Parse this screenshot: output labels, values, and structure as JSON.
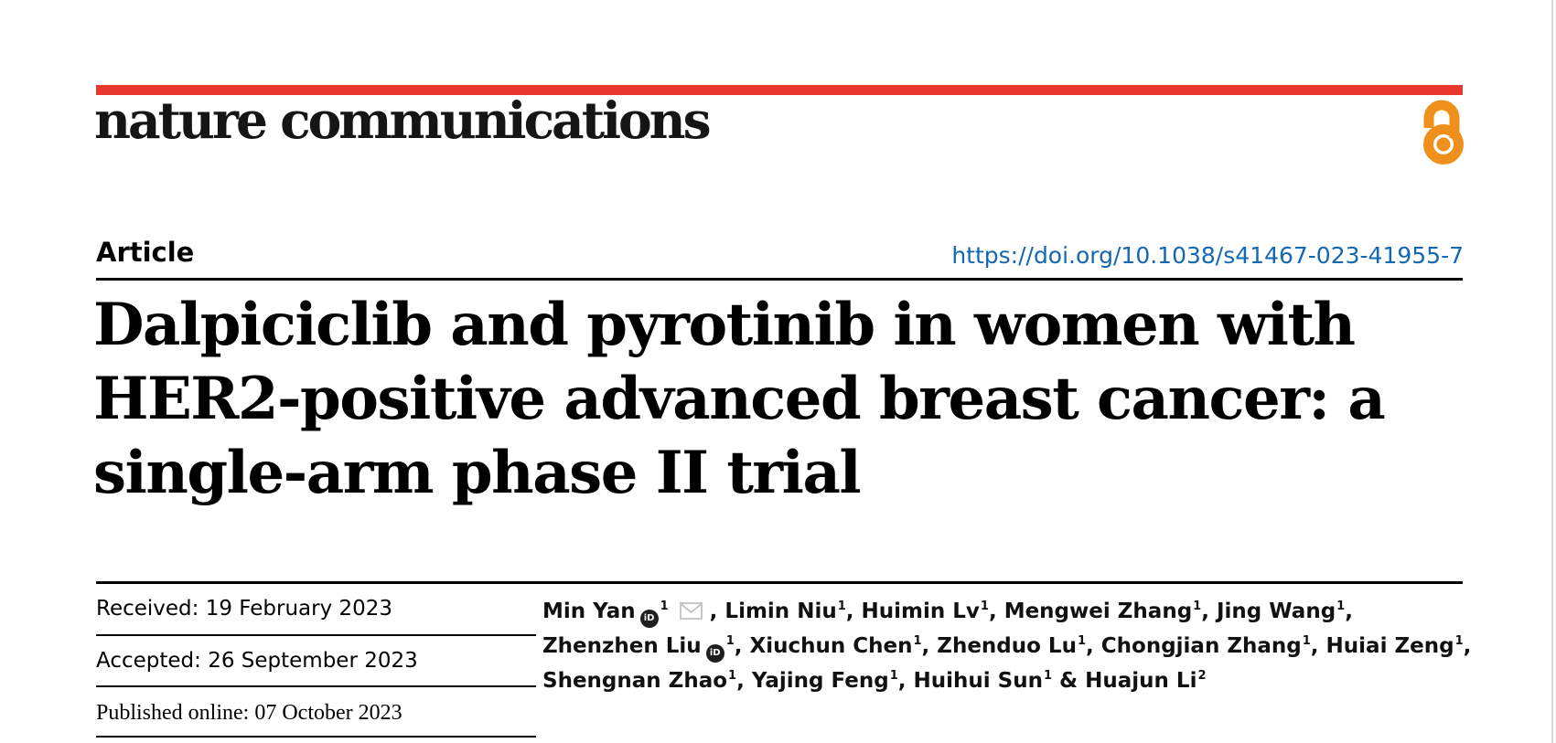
{
  "page": {
    "edge_color": "#d9d9d9"
  },
  "masthead": {
    "journal_name": "nature communications",
    "bar_color": "#e6382c",
    "open_access_color": "#ef8f1c"
  },
  "article": {
    "kicker": "Article",
    "doi": "https://doi.org/10.1038/s41467-023-41955-7",
    "doi_color": "#1268b3",
    "title_lines": [
      "Dalpiciclib and pyrotinib in women with",
      "HER2-positive advanced breast cancer: a",
      "single-arm phase II trial"
    ]
  },
  "history": {
    "received": "Received: 19 February 2023",
    "accepted": "Accepted: 26 September 2023",
    "published": "Published online: 07 October 2023"
  },
  "authors": {
    "orcid_icon_label": "iD",
    "lines": [
      [
        {
          "name": "Min Yan",
          "orcid": true,
          "sup": "1",
          "email": true,
          "sep": ", "
        },
        {
          "name": "Limin Niu",
          "sup": "1",
          "sep": ", "
        },
        {
          "name": "Huimin Lv",
          "sup": "1",
          "sep": ", "
        },
        {
          "name": "Mengwei Zhang",
          "sup": "1",
          "sep": ", "
        },
        {
          "name": "Jing Wang",
          "sup": "1",
          "sep": ","
        }
      ],
      [
        {
          "name": "Zhenzhen Liu",
          "orcid": true,
          "sup": "1",
          "sep": ", "
        },
        {
          "name": "Xiuchun Chen",
          "sup": "1",
          "sep": ", "
        },
        {
          "name": "Zhenduo Lu",
          "sup": "1",
          "sep": ", "
        },
        {
          "name": "Chongjian Zhang",
          "sup": "1",
          "sep": ", "
        },
        {
          "name": "Huiai Zeng",
          "sup": "1",
          "sep": ","
        }
      ],
      [
        {
          "name": "Shengnan Zhao",
          "sup": "1",
          "sep": ", "
        },
        {
          "name": "Yajing Feng",
          "sup": "1",
          "sep": ", "
        },
        {
          "name": "Huihui Sun",
          "sup": "1",
          "sep": " & "
        },
        {
          "name": "Huajun Li",
          "sup": "2",
          "sep": ""
        }
      ]
    ]
  }
}
